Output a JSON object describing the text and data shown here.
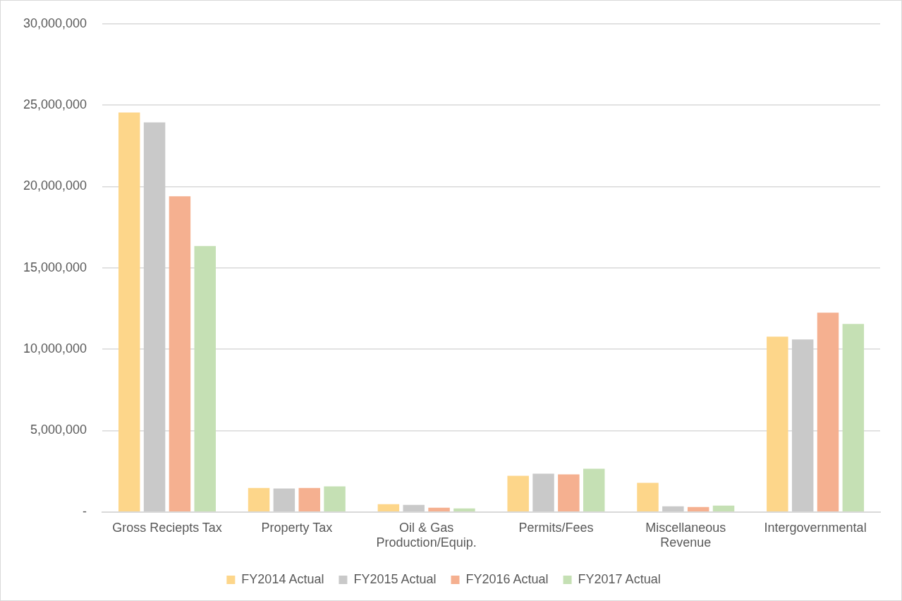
{
  "chart_data": {
    "type": "bar",
    "categories": [
      "Gross Reciepts Tax",
      "Property Tax",
      "Oil & Gas Production/Equip.",
      "Permits/Fees",
      "Miscellaneous Revenue",
      "Intergovernmental"
    ],
    "series": [
      {
        "name": "FY2014 Actual",
        "color": "#fdd68a",
        "values": [
          24550000,
          1480000,
          480000,
          2220000,
          1790000,
          10780000
        ]
      },
      {
        "name": "FY2015 Actual",
        "color": "#c9c9c9",
        "values": [
          23940000,
          1440000,
          440000,
          2350000,
          350000,
          10600000
        ]
      },
      {
        "name": "FY2016 Actual",
        "color": "#f5b090",
        "values": [
          19400000,
          1480000,
          260000,
          2310000,
          310000,
          12250000
        ]
      },
      {
        "name": "FY2017 Actual",
        "color": "#c5e0b4",
        "values": [
          16350000,
          1570000,
          220000,
          2660000,
          390000,
          11560000
        ]
      }
    ],
    "ylim": [
      0,
      30000000
    ],
    "yticks": [
      {
        "value": 0,
        "label": "-"
      },
      {
        "value": 5000000,
        "label": "5,000,000"
      },
      {
        "value": 10000000,
        "label": "10,000,000"
      },
      {
        "value": 15000000,
        "label": "15,000,000"
      },
      {
        "value": 20000000,
        "label": "20,000,000"
      },
      {
        "value": 25000000,
        "label": "25,000,000"
      },
      {
        "value": 30000000,
        "label": "30,000,000"
      }
    ],
    "grid": "y",
    "legend": "bottom"
  }
}
